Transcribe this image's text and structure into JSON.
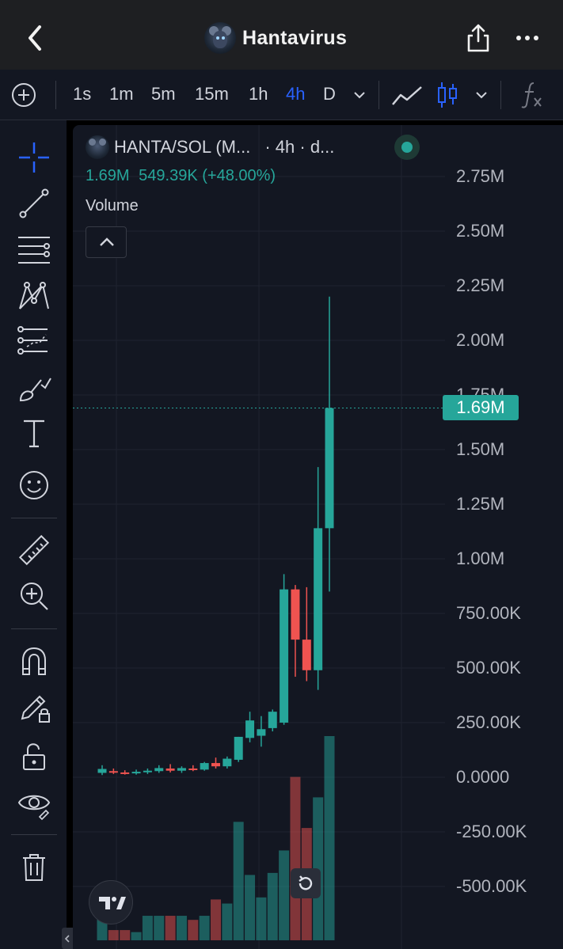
{
  "header": {
    "title": "Hantavirus",
    "avatar_icon": "rat-avatar-icon"
  },
  "toolbar": {
    "timeframes": [
      {
        "label": "1s",
        "active": false
      },
      {
        "label": "1m",
        "active": false
      },
      {
        "label": "5m",
        "active": false
      },
      {
        "label": "15m",
        "active": false
      },
      {
        "label": "1h",
        "active": false
      },
      {
        "label": "4h",
        "active": true
      },
      {
        "label": "D",
        "active": false
      }
    ],
    "accent_color": "#2962ff"
  },
  "legend": {
    "symbol": "HANTA/SOL (M...",
    "suffix": "· 4h · d...",
    "last_price": "1.69M",
    "change": "549.39K (+48.00%)",
    "volume_label": "Volume"
  },
  "price_axis": {
    "labels": [
      "2.75M",
      "2.50M",
      "2.25M",
      "2.00M",
      "1.75M",
      "1.50M",
      "1.25M",
      "1.00M",
      "750.00K",
      "500.00K",
      "250.00K",
      "0.0000",
      "-250.00K",
      "-500.00K"
    ],
    "current_tag": "1.69M"
  },
  "colors": {
    "up": "#26a69a",
    "down": "#ef5350",
    "background": "#131722"
  },
  "chart_data": {
    "type": "candlestick",
    "ylim": [
      -650000,
      2900000
    ],
    "last_price": 1690000,
    "candles": [
      {
        "o": 20000,
        "h": 55000,
        "l": 10000,
        "c": 38000
      },
      {
        "o": 28000,
        "h": 40000,
        "l": 15000,
        "c": 24000
      },
      {
        "o": 22000,
        "h": 32000,
        "l": 12000,
        "c": 18000
      },
      {
        "o": 20000,
        "h": 35000,
        "l": 12000,
        "c": 25000
      },
      {
        "o": 24000,
        "h": 40000,
        "l": 15000,
        "c": 30000
      },
      {
        "o": 28000,
        "h": 55000,
        "l": 20000,
        "c": 42000
      },
      {
        "o": 40000,
        "h": 60000,
        "l": 22000,
        "c": 30000
      },
      {
        "o": 30000,
        "h": 50000,
        "l": 20000,
        "c": 42000
      },
      {
        "o": 40000,
        "h": 55000,
        "l": 28000,
        "c": 35000
      },
      {
        "o": 35000,
        "h": 70000,
        "l": 30000,
        "c": 65000
      },
      {
        "o": 65000,
        "h": 90000,
        "l": 40000,
        "c": 50000
      },
      {
        "o": 50000,
        "h": 95000,
        "l": 40000,
        "c": 85000
      },
      {
        "o": 80000,
        "h": 170000,
        "l": 70000,
        "c": 185000
      },
      {
        "o": 180000,
        "h": 300000,
        "l": 160000,
        "c": 260000
      },
      {
        "o": 190000,
        "h": 280000,
        "l": 140000,
        "c": 220000
      },
      {
        "o": 225000,
        "h": 310000,
        "l": 210000,
        "c": 300000
      },
      {
        "o": 250000,
        "h": 930000,
        "l": 240000,
        "c": 860000
      },
      {
        "o": 860000,
        "h": 880000,
        "l": 460000,
        "c": 630000
      },
      {
        "o": 630000,
        "h": 870000,
        "l": 440000,
        "c": 490000
      },
      {
        "o": 490000,
        "h": 1420000,
        "l": 400000,
        "c": 1140000
      },
      {
        "o": 1140000,
        "h": 2200000,
        "l": 850000,
        "c": 1690000
      }
    ],
    "volume": [
      0.17,
      0.05,
      0.05,
      0.04,
      0.12,
      0.12,
      0.12,
      0.12,
      0.1,
      0.12,
      0.2,
      0.18,
      0.58,
      0.32,
      0.21,
      0.33,
      0.44,
      0.8,
      0.55,
      0.7,
      1.0
    ]
  }
}
